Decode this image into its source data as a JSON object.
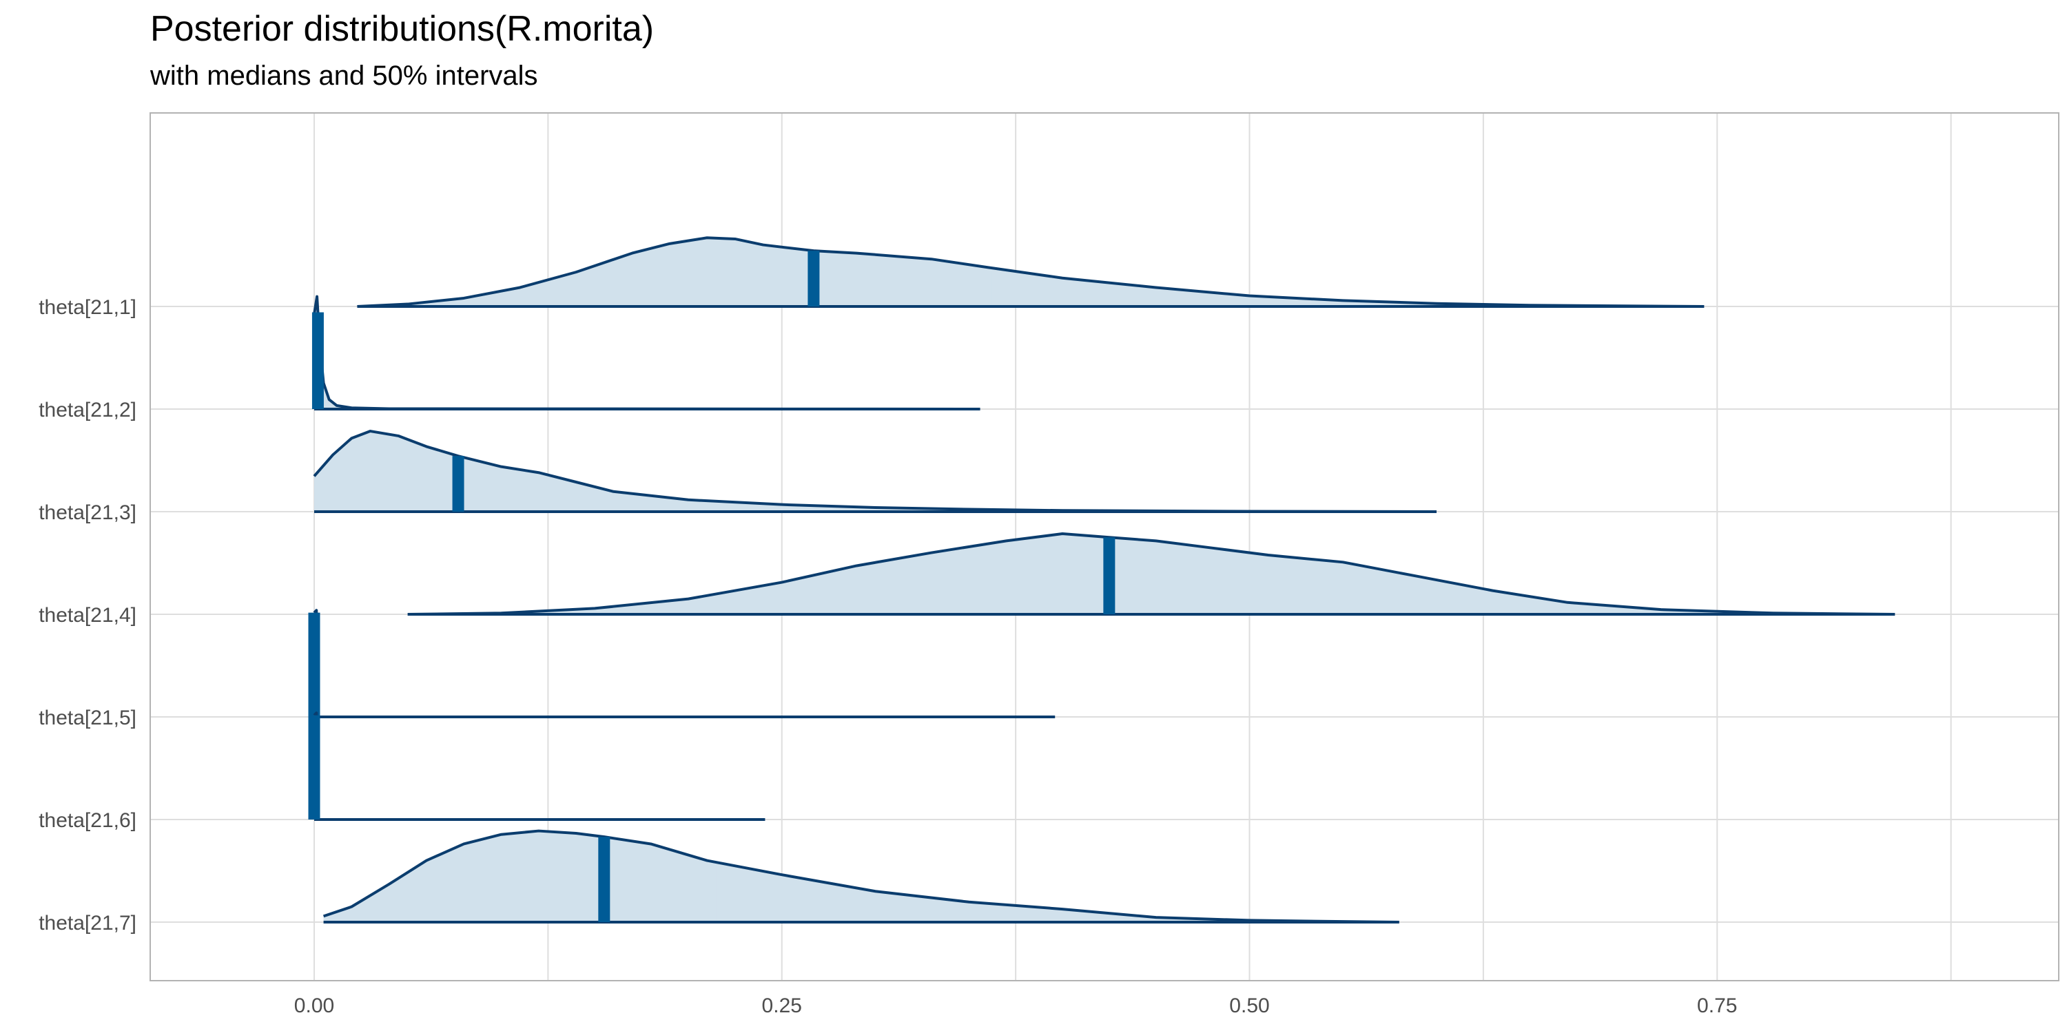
{
  "chart_data": {
    "type": "area",
    "title": "Posterior distributions(R.morita)",
    "subtitle": "with medians and 50% intervals",
    "xlabel": "",
    "ylabel": "",
    "xlim": [
      -0.08,
      0.93
    ],
    "x_ticks": [
      0.0,
      0.25,
      0.5,
      0.75
    ],
    "x_tick_labels": [
      "0.00",
      "0.25",
      "0.50",
      "0.75"
    ],
    "grid": true,
    "colors": {
      "outline": "#0b3d6e",
      "fill": "#d1e1ec",
      "median": "#005b96",
      "grid": "#dedede",
      "border": "#b3b3b3"
    },
    "series": [
      {
        "name": "theta[21,1]",
        "range": [
          0.023,
          0.743
        ],
        "median": 0.267,
        "interval": [
          0.185,
          0.362
        ],
        "density": [
          [
            0.023,
            0.0
          ],
          [
            0.05,
            0.02
          ],
          [
            0.08,
            0.07
          ],
          [
            0.11,
            0.16
          ],
          [
            0.14,
            0.29
          ],
          [
            0.17,
            0.45
          ],
          [
            0.19,
            0.53
          ],
          [
            0.21,
            0.58
          ],
          [
            0.225,
            0.57
          ],
          [
            0.24,
            0.52
          ],
          [
            0.267,
            0.47
          ],
          [
            0.29,
            0.45
          ],
          [
            0.33,
            0.4
          ],
          [
            0.36,
            0.33
          ],
          [
            0.4,
            0.24
          ],
          [
            0.45,
            0.16
          ],
          [
            0.5,
            0.09
          ],
          [
            0.55,
            0.05
          ],
          [
            0.6,
            0.025
          ],
          [
            0.65,
            0.01
          ],
          [
            0.743,
            0.0
          ]
        ]
      },
      {
        "name": "theta[21,2]",
        "range": [
          0.0,
          0.356
        ],
        "median": 0.002,
        "interval": [
          0.0005,
          0.005
        ],
        "density": [
          [
            0.0,
            0.8
          ],
          [
            0.0015,
            0.95
          ],
          [
            0.003,
            0.55
          ],
          [
            0.005,
            0.22
          ],
          [
            0.008,
            0.08
          ],
          [
            0.012,
            0.03
          ],
          [
            0.02,
            0.01
          ],
          [
            0.04,
            0.003
          ],
          [
            0.356,
            0.0
          ]
        ]
      },
      {
        "name": "theta[21,3]",
        "range": [
          0.0,
          0.6
        ],
        "median": 0.077,
        "interval": [
          0.04,
          0.125
        ],
        "density": [
          [
            0.0,
            0.3
          ],
          [
            0.01,
            0.48
          ],
          [
            0.02,
            0.62
          ],
          [
            0.03,
            0.68
          ],
          [
            0.045,
            0.64
          ],
          [
            0.06,
            0.55
          ],
          [
            0.077,
            0.47
          ],
          [
            0.1,
            0.38
          ],
          [
            0.12,
            0.33
          ],
          [
            0.14,
            0.25
          ],
          [
            0.16,
            0.17
          ],
          [
            0.2,
            0.1
          ],
          [
            0.25,
            0.06
          ],
          [
            0.3,
            0.035
          ],
          [
            0.35,
            0.02
          ],
          [
            0.4,
            0.01
          ],
          [
            0.5,
            0.003
          ],
          [
            0.6,
            0.0
          ]
        ]
      },
      {
        "name": "theta[21,4]",
        "range": [
          0.05,
          0.845
        ],
        "median": 0.425,
        "interval": [
          0.35,
          0.51
        ],
        "density": [
          [
            0.05,
            0.0
          ],
          [
            0.1,
            0.01
          ],
          [
            0.15,
            0.05
          ],
          [
            0.2,
            0.13
          ],
          [
            0.25,
            0.27
          ],
          [
            0.29,
            0.41
          ],
          [
            0.33,
            0.52
          ],
          [
            0.37,
            0.62
          ],
          [
            0.4,
            0.68
          ],
          [
            0.425,
            0.65
          ],
          [
            0.45,
            0.62
          ],
          [
            0.48,
            0.56
          ],
          [
            0.51,
            0.5
          ],
          [
            0.55,
            0.44
          ],
          [
            0.59,
            0.32
          ],
          [
            0.63,
            0.2
          ],
          [
            0.67,
            0.1
          ],
          [
            0.72,
            0.04
          ],
          [
            0.78,
            0.01
          ],
          [
            0.845,
            0.0
          ]
        ]
      },
      {
        "name": "theta[21,5]",
        "range": [
          0.0,
          0.396
        ],
        "median": 0.0,
        "interval": [
          0.0,
          0.001
        ],
        "density": [
          [
            0.0,
            0.88
          ],
          [
            0.0012,
            0.9
          ],
          [
            0.002,
            0.0
          ],
          [
            0.396,
            0.0
          ]
        ]
      },
      {
        "name": "theta[21,6]",
        "range": [
          0.0,
          0.241
        ],
        "median": 0.0,
        "interval": [
          0.0,
          0.001
        ],
        "density": [
          [
            0.0,
            0.88
          ],
          [
            0.0012,
            0.9
          ],
          [
            0.002,
            0.0
          ],
          [
            0.241,
            0.0
          ]
        ]
      },
      {
        "name": "theta[21,7]",
        "range": [
          0.005,
          0.58
        ],
        "median": 0.155,
        "interval": [
          0.095,
          0.215
        ],
        "density": [
          [
            0.005,
            0.05
          ],
          [
            0.02,
            0.13
          ],
          [
            0.04,
            0.32
          ],
          [
            0.06,
            0.52
          ],
          [
            0.08,
            0.66
          ],
          [
            0.1,
            0.74
          ],
          [
            0.12,
            0.77
          ],
          [
            0.14,
            0.75
          ],
          [
            0.155,
            0.72
          ],
          [
            0.18,
            0.66
          ],
          [
            0.21,
            0.52
          ],
          [
            0.25,
            0.4
          ],
          [
            0.3,
            0.26
          ],
          [
            0.35,
            0.17
          ],
          [
            0.4,
            0.11
          ],
          [
            0.45,
            0.04
          ],
          [
            0.5,
            0.015
          ],
          [
            0.55,
            0.005
          ],
          [
            0.58,
            0.0
          ]
        ]
      }
    ]
  }
}
